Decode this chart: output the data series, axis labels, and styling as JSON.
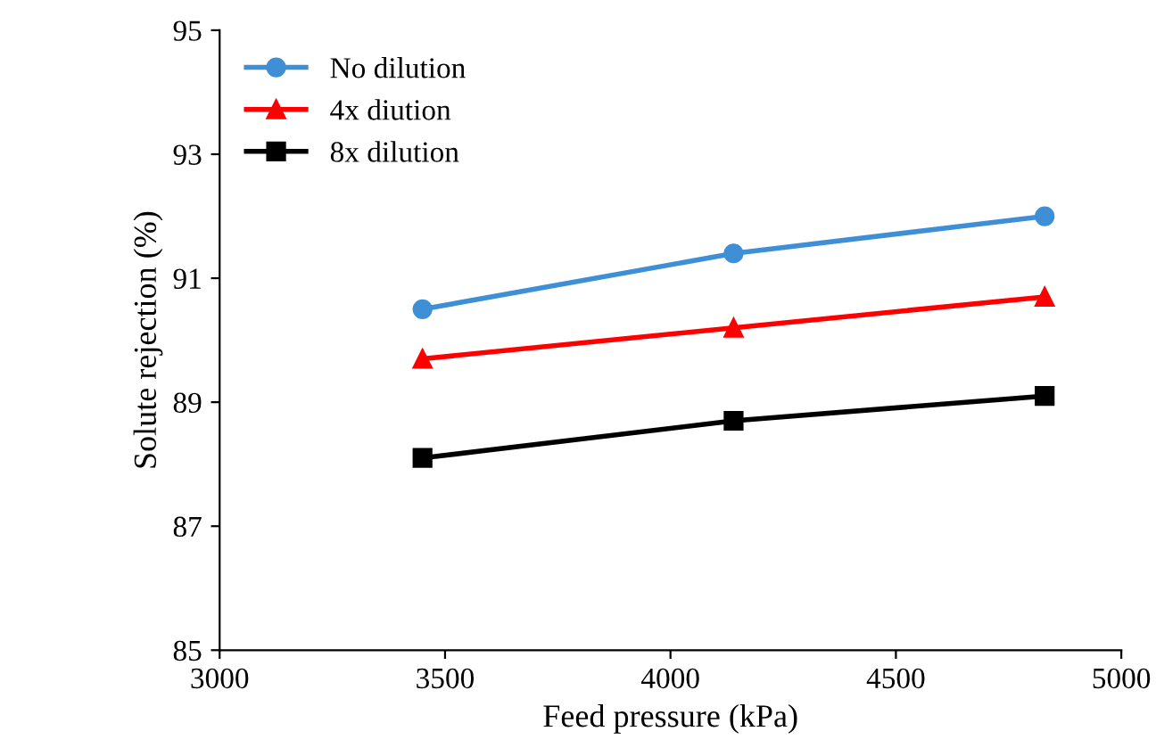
{
  "chart_data": {
    "type": "line",
    "xlabel": "Feed pressure (kPa)",
    "ylabel": "Solute rejection (%)",
    "x": [
      3450,
      4140,
      4830
    ],
    "series": [
      {
        "name": "No dilution",
        "color": "#3e8fd6",
        "marker": "circle",
        "values": [
          90.5,
          91.4,
          92.0
        ]
      },
      {
        "name": "4x diution",
        "color": "#ff0000",
        "marker": "triangle",
        "values": [
          89.7,
          90.2,
          90.7
        ]
      },
      {
        "name": "8x dilution",
        "color": "#000000",
        "marker": "square",
        "values": [
          88.1,
          88.7,
          89.1
        ]
      }
    ],
    "xlim": [
      3000,
      5000
    ],
    "xticks": [
      3000,
      3500,
      4000,
      4500,
      5000
    ],
    "ylim": [
      85,
      95
    ],
    "yticks": [
      85,
      87,
      89,
      91,
      93,
      95
    ],
    "grid": false,
    "legend": "top left",
    "line_style": "solid"
  }
}
